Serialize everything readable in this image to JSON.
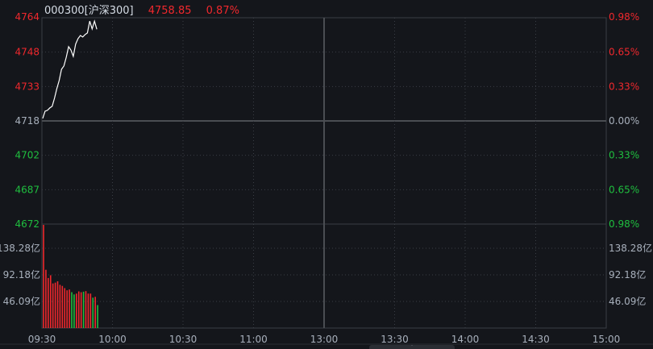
{
  "header": {
    "code": "000300[沪深300]",
    "price": "4758.85",
    "change_pct": "0.87%"
  },
  "colors": {
    "up": "#f0282d",
    "down": "#1fbf3f",
    "neutral": "#a8b0bc",
    "line": "#ffffff",
    "grid": "#3a3e45",
    "background": "#14161b"
  },
  "chart_data": {
    "type": "line",
    "instrument": "000300[沪深300]",
    "x_ticks": [
      "09:30",
      "10:00",
      "10:30",
      "11:00",
      "13:00",
      "13:30",
      "14:00",
      "14:30",
      "15:00"
    ],
    "price_axis": {
      "ylim": [
        4672,
        4764
      ],
      "prev_close": 4718,
      "left_ticks": [
        "4764",
        "4748",
        "4733",
        "4718",
        "4702",
        "4687",
        "4672"
      ],
      "right_ticks": [
        "0.98%",
        "0.65%",
        "0.33%",
        "0.00%",
        "0.33%",
        "0.65%",
        "0.98%"
      ]
    },
    "price_series": [
      4719.1,
      4722.3,
      4722.7,
      4723.8,
      4724.5,
      4728.1,
      4732.4,
      4736.0,
      4741.0,
      4742.5,
      4746.4,
      4751.1,
      4749.6,
      4746.8,
      4752.2,
      4754.7,
      4756.1,
      4755.4,
      4756.5,
      4757.2,
      4762.5,
      4759.0,
      4762.5,
      4758.85
    ],
    "volume_axis": {
      "unit": "亿",
      "ticks": [
        "138.28亿",
        "92.18亿",
        "46.09亿"
      ],
      "tick_values": [
        138.28,
        92.18,
        46.09
      ]
    },
    "volume_series": [
      181.6,
      101,
      86.7,
      91.5,
      77.3,
      78.7,
      81,
      74.9,
      73,
      69.2,
      65.4,
      66.8,
      62.1,
      58.3,
      59.7,
      63.5,
      62.1,
      63,
      64,
      59.7,
      59.7,
      52.6,
      54.1,
      39.8
    ],
    "volume_direction": [
      "up",
      "up",
      "up",
      "up",
      "up",
      "up",
      "up",
      "up",
      "up",
      "up",
      "up",
      "up",
      "down",
      "down",
      "up",
      "up",
      "up",
      "down",
      "up",
      "up",
      "up",
      "down",
      "up",
      "down"
    ],
    "grid": true
  },
  "footer": {
    "collapse_icon": "chevron-down-icon",
    "collapse_glyph": "˅"
  }
}
